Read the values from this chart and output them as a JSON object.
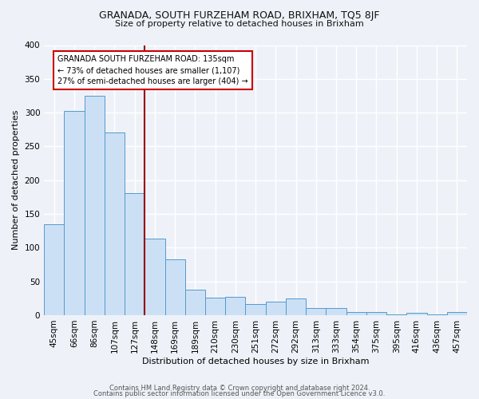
{
  "title": "GRANADA, SOUTH FURZEHAM ROAD, BRIXHAM, TQ5 8JF",
  "subtitle": "Size of property relative to detached houses in Brixham",
  "xlabel": "Distribution of detached houses by size in Brixham",
  "ylabel": "Number of detached properties",
  "footer_line1": "Contains HM Land Registry data © Crown copyright and database right 2024.",
  "footer_line2": "Contains public sector information licensed under the Open Government Licence v3.0.",
  "bin_labels": [
    "45sqm",
    "66sqm",
    "86sqm",
    "107sqm",
    "127sqm",
    "148sqm",
    "169sqm",
    "189sqm",
    "210sqm",
    "230sqm",
    "251sqm",
    "272sqm",
    "292sqm",
    "313sqm",
    "333sqm",
    "354sqm",
    "375sqm",
    "395sqm",
    "416sqm",
    "436sqm",
    "457sqm"
  ],
  "bar_values": [
    135,
    302,
    325,
    270,
    181,
    113,
    83,
    38,
    26,
    27,
    16,
    20,
    25,
    11,
    10,
    5,
    5,
    1,
    3,
    1,
    5
  ],
  "bar_color": "#cce0f5",
  "bar_edge_color": "#5599cc",
  "vline_x": 4.5,
  "vline_color": "#990000",
  "annotation_text": "GRANADA SOUTH FURZEHAM ROAD: 135sqm\n← 73% of detached houses are smaller (1,107)\n27% of semi-detached houses are larger (404) →",
  "annotation_box_edge": "#cc0000",
  "ylim": [
    0,
    400
  ],
  "yticks": [
    0,
    50,
    100,
    150,
    200,
    250,
    300,
    350,
    400
  ],
  "bg_color": "#eef2f8",
  "grid_color": "#ffffff",
  "title_fontsize": 9,
  "subtitle_fontsize": 8,
  "xlabel_fontsize": 8,
  "ylabel_fontsize": 8,
  "tick_fontsize": 7.5,
  "footer_fontsize": 6
}
